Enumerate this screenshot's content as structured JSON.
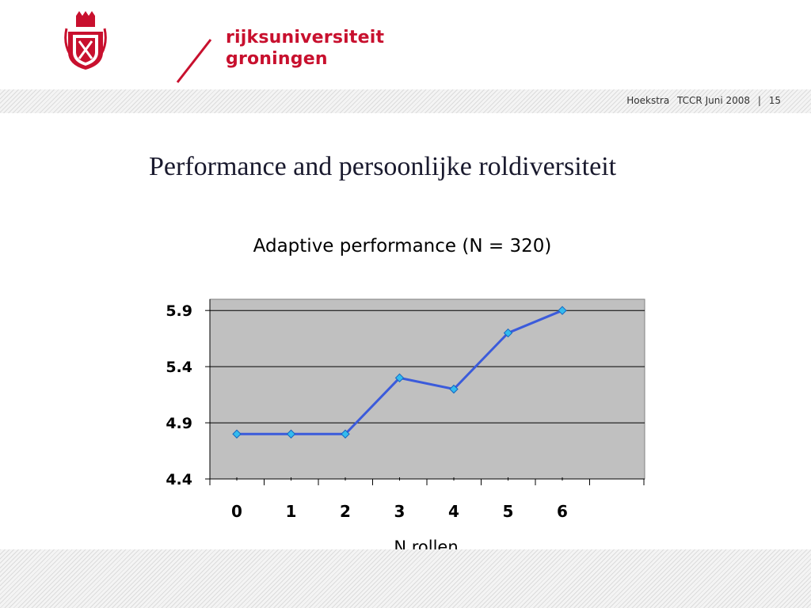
{
  "logo": {
    "line1": "rijksuniversiteit",
    "line2": "groningen"
  },
  "footer": {
    "author": "Hoekstra",
    "event": "TCCR Juni 2008",
    "separator": "|",
    "page": "15"
  },
  "slide": {
    "title": "Performance and persoonlijke roldiversiteit"
  },
  "colors": {
    "brand": "#c8102e",
    "line": "#3b5bdb",
    "marker": "#33bbee",
    "plot_bg": "#c0c0c0"
  },
  "chart_data": {
    "type": "line",
    "title": "Adaptive performance (N = 320)",
    "xlabel": "N rollen",
    "ylabel": "",
    "categories": [
      "0",
      "1",
      "2",
      "3",
      "4",
      "5",
      "6"
    ],
    "values": [
      4.8,
      4.8,
      4.8,
      5.3,
      5.2,
      5.7,
      5.9
    ],
    "yticks": [
      "4.4",
      "4.9",
      "5.4",
      "5.9"
    ],
    "ylim": [
      4.4,
      6.0
    ],
    "grid": true,
    "legend": "none"
  }
}
